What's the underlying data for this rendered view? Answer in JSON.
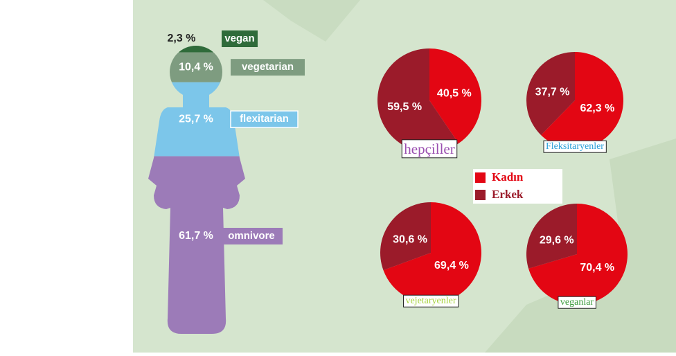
{
  "chart_data": [
    {
      "type": "figure",
      "categories": [
        "vegan",
        "vegetarian",
        "flexitarian",
        "omnivore"
      ],
      "values": [
        2.3,
        10.4,
        25.7,
        61.7
      ],
      "value_labels": [
        "2,3 %",
        "10,4 %",
        "25,7 %",
        "61,7 %"
      ],
      "colors": [
        "#2f6b3a",
        "#7e9c80",
        "#7cc6ea",
        "#9c7bb8"
      ]
    },
    {
      "type": "pie",
      "title": "hepçiller",
      "title_color": "#9a4fb0",
      "categories": [
        "Kadın",
        "Erkek"
      ],
      "values": [
        40.5,
        59.5
      ],
      "value_labels": [
        "40,5 %",
        "59,5 %"
      ],
      "colors": [
        "#e30613",
        "#9b1b2a"
      ]
    },
    {
      "type": "pie",
      "title": "Fleksitaryenler",
      "title_color": "#2a9fd8",
      "categories": [
        "Kadın",
        "Erkek"
      ],
      "values": [
        62.3,
        37.7
      ],
      "value_labels": [
        "62,3 %",
        "37,7 %"
      ],
      "colors": [
        "#e30613",
        "#9b1b2a"
      ]
    },
    {
      "type": "pie",
      "title": "vejetaryenler",
      "title_color": "#a6d13d",
      "categories": [
        "Kadın",
        "Erkek"
      ],
      "values": [
        69.4,
        30.6
      ],
      "value_labels": [
        "69,4 %",
        "30,6 %"
      ],
      "colors": [
        "#e30613",
        "#9b1b2a"
      ]
    },
    {
      "type": "pie",
      "title": "veganlar",
      "title_color": "#3a9a3a",
      "categories": [
        "Kadın",
        "Erkek"
      ],
      "values": [
        70.4,
        29.6
      ],
      "value_labels": [
        "70,4 %",
        "29,6 %"
      ],
      "colors": [
        "#e30613",
        "#9b1b2a"
      ]
    }
  ]
}
